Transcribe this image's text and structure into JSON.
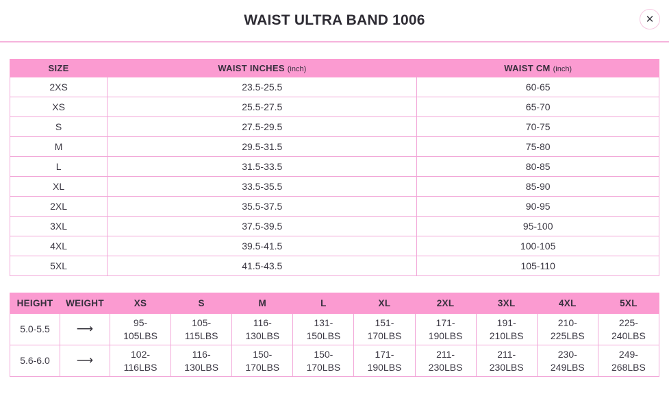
{
  "header": {
    "title": "WAIST ULTRA BAND 1006",
    "close_glyph": "✕"
  },
  "colors": {
    "header_pink": "#fb9bd1",
    "cell_border_pink": "#f2a6d8",
    "divider_pink": "#f5b3dc",
    "title_text": "#2e2c34"
  },
  "size_table": {
    "columns": [
      {
        "label": "SIZE",
        "sub": ""
      },
      {
        "label": "WAIST INCHES",
        "sub": "(inch)"
      },
      {
        "label": "WAIST CM",
        "sub": "(inch)"
      }
    ],
    "rows": [
      {
        "size": "2XS",
        "inches": "23.5-25.5",
        "cm": "60-65"
      },
      {
        "size": "XS",
        "inches": "25.5-27.5",
        "cm": "65-70"
      },
      {
        "size": "S",
        "inches": "27.5-29.5",
        "cm": "70-75"
      },
      {
        "size": "M",
        "inches": "29.5-31.5",
        "cm": "75-80"
      },
      {
        "size": "L",
        "inches": "31.5-33.5",
        "cm": "80-85"
      },
      {
        "size": "XL",
        "inches": "33.5-35.5",
        "cm": "85-90"
      },
      {
        "size": "2XL",
        "inches": "35.5-37.5",
        "cm": "90-95"
      },
      {
        "size": "3XL",
        "inches": "37.5-39.5",
        "cm": "95-100"
      },
      {
        "size": "4XL",
        "inches": "39.5-41.5",
        "cm": "100-105"
      },
      {
        "size": "5XL",
        "inches": "41.5-43.5",
        "cm": "105-110"
      }
    ]
  },
  "weight_table": {
    "columns": [
      "HEIGHT",
      "WEIGHT",
      "XS",
      "S",
      "M",
      "L",
      "XL",
      "2XL",
      "3XL",
      "4XL",
      "5XL"
    ],
    "arrow_glyph": "⟶",
    "rows": [
      {
        "height": "5.0-5.5",
        "values": [
          "95-105LBS",
          "105-115LBS",
          "116-130LBS",
          "131-150LBS",
          "151-170LBS",
          "171-190LBS",
          "191-210LBS",
          "210-225LBS",
          "225-240LBS"
        ]
      },
      {
        "height": "5.6-6.0",
        "values": [
          "102-116LBS",
          "116-130LBS",
          "150-170LBS",
          "150-170LBS",
          "171-190LBS",
          "211-230LBS",
          "211-230LBS",
          "230-249LBS",
          "249-268LBS"
        ]
      }
    ]
  }
}
